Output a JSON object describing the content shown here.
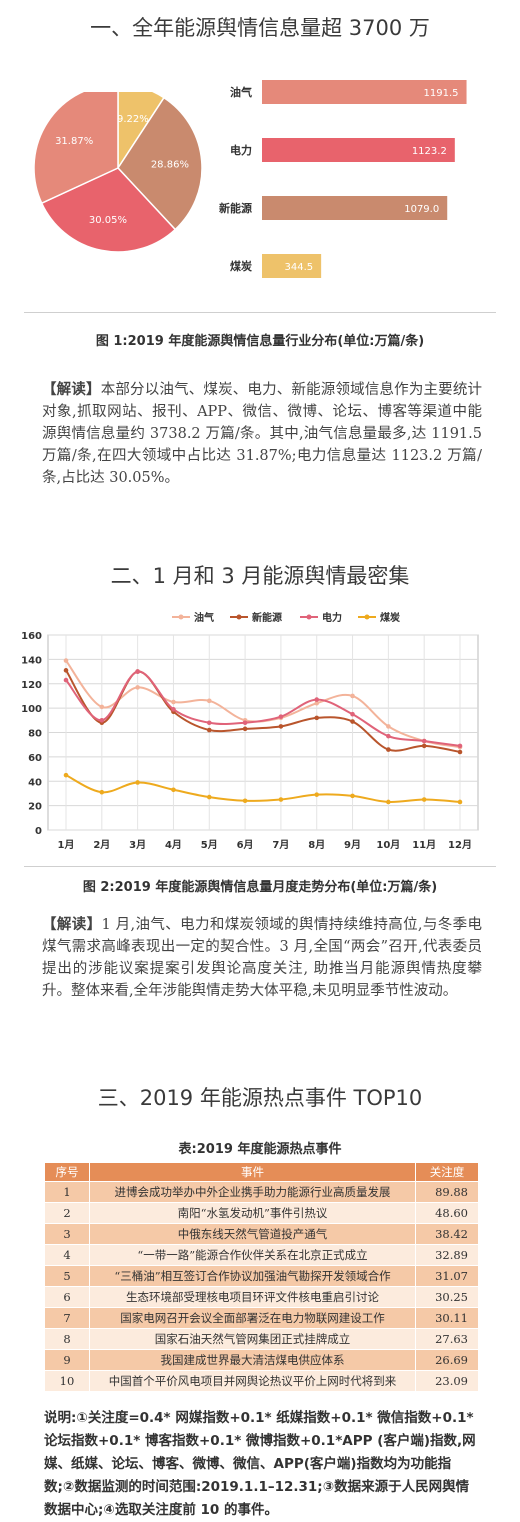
{
  "section1": {
    "title": "一、全年能源舆情信息量超 3700 万"
  },
  "chart_data": [
    {
      "type": "pie",
      "categories": [
        "油气",
        "电力",
        "新能源",
        "煤炭"
      ],
      "values": [
        31.87,
        30.05,
        28.86,
        9.22
      ],
      "labels": [
        "31.87%",
        "30.05%",
        "28.86%",
        "9.22%"
      ],
      "colors": [
        "#e5897a",
        "#e8636c",
        "#c98a6e",
        "#eec26a"
      ]
    },
    {
      "type": "bar",
      "orientation": "horizontal",
      "categories": [
        "油气",
        "电力",
        "新能源",
        "煤炭"
      ],
      "values": [
        1191.5,
        1123.2,
        1079.0,
        344.5
      ],
      "value_labels": [
        "1191.5",
        "1123.2",
        "1079.0",
        "344.5"
      ],
      "colors": [
        "#e5897a",
        "#e8636c",
        "#c98a6e",
        "#eec26a"
      ],
      "xlim": [
        0,
        1200
      ]
    },
    {
      "type": "line",
      "x": [
        "1月",
        "2月",
        "3月",
        "4月",
        "5月",
        "6月",
        "7月",
        "8月",
        "9月",
        "10月",
        "11月",
        "12月"
      ],
      "ylim": [
        0,
        160
      ],
      "yticks": [
        0,
        20,
        40,
        60,
        80,
        100,
        120,
        140,
        160
      ],
      "grid": true,
      "legend_position": "top",
      "series": [
        {
          "name": "油气",
          "color": "#f3b39a",
          "values": [
            139,
            101,
            117,
            105,
            106,
            90,
            92,
            104,
            110,
            85,
            73,
            68
          ]
        },
        {
          "name": "新能源",
          "color": "#b9552c",
          "values": [
            131,
            88,
            130,
            97,
            82,
            83,
            85,
            92,
            89,
            66,
            69,
            64
          ]
        },
        {
          "name": "电力",
          "color": "#e06379",
          "values": [
            123,
            90,
            130,
            99,
            88,
            88,
            93,
            107,
            95,
            77,
            73,
            69
          ]
        },
        {
          "name": "煤炭",
          "color": "#eeaa1e",
          "values": [
            45,
            31,
            39,
            33,
            27,
            24,
            25,
            29,
            28,
            23,
            25,
            23
          ]
        }
      ]
    }
  ],
  "figure1": {
    "caption": "图 1:2019 年度能源舆情信息量行业分布(单位:万篇/条)"
  },
  "analysis1": {
    "tag": "【解读】",
    "text": "本部分以油气、煤炭、电力、新能源领域信息作为主要统计对象,抓取网站、报刊、APP、微信、微博、论坛、博客等渠道中能源舆情信息量约 3738.2 万篇/条。其中,油气信息量最多,达 1191.5 万篇/条,在四大领域中占比达 31.87%;电力信息量达 1123.2 万篇/条,占比达 30.05%。"
  },
  "section2": {
    "title": "二、1 月和 3 月能源舆情最密集"
  },
  "figure2": {
    "caption": "图 2:2019 年度能源舆情信息量月度走势分布(单位:万篇/条)"
  },
  "analysis2": {
    "tag": "【解读】",
    "text": "1 月,油气、电力和煤炭领域的舆情持续维持高位,与冬季电煤气需求高峰表现出一定的契合性。3 月,全国“两会”召开,代表委员提出的涉能议案提案引发舆论高度关注, 助推当月能源舆情热度攀升。整体来看,全年涉能舆情走势大体平稳,未见明显季节性波动。"
  },
  "section3": {
    "title": "三、2019 年能源热点事件 TOP10"
  },
  "table": {
    "title": "表:2019 年度能源热点事件",
    "headers": [
      "序号",
      "事件",
      "关注度"
    ],
    "rows": [
      [
        "1",
        "进博会成功举办中外企业携手助力能源行业高质量发展",
        "89.88"
      ],
      [
        "2",
        "南阳“水氢发动机”事件引热议",
        "48.60"
      ],
      [
        "3",
        "中俄东线天然气管道投产通气",
        "38.42"
      ],
      [
        "4",
        "“一带一路”能源合作伙伴关系在北京正式成立",
        "32.89"
      ],
      [
        "5",
        "“三桶油”相互签订合作协议加强油气勘探开发领域合作",
        "31.07"
      ],
      [
        "6",
        "生态环境部受理核电项目环评文件核电重启引讨论",
        "30.25"
      ],
      [
        "7",
        "国家电网召开会议全面部署泛在电力物联网建设工作",
        "30.11"
      ],
      [
        "8",
        "国家石油天然气管网集团正式挂牌成立",
        "27.63"
      ],
      [
        "9",
        "我国建成世界最大清洁煤电供应体系",
        "26.69"
      ],
      [
        "10",
        "中国首个平价风电项目并网舆论热议平价上网时代将到来",
        "23.09"
      ]
    ]
  },
  "note": {
    "text": "说明:①关注度=0.4* 网媒指数+0.1* 纸媒指数+0.1* 微信指数+0.1* 论坛指数+0.1* 博客指数+0.1* 微博指数+0.1*APP (客户端)指数,网媒、纸媒、论坛、博客、微博、微信、APP(客户端)指数均为功能指数;②数据监测的时间范围:2019.1.1–12.31;③数据来源于人民网舆情数据中心;④选取关注度前 10 的事件。"
  }
}
